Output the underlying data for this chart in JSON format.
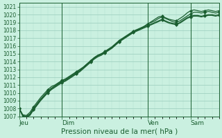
{
  "background_color": "#caf0e0",
  "grid_color": "#99ccbb",
  "line_color": "#1a5e30",
  "title": "Pression niveau de la mer( hPa )",
  "ylim": [
    1007,
    1021.5
  ],
  "yticks": [
    1007,
    1008,
    1009,
    1010,
    1011,
    1012,
    1013,
    1014,
    1015,
    1016,
    1017,
    1018,
    1019,
    1020,
    1021
  ],
  "xlim": [
    0,
    56
  ],
  "day_labels": [
    "Jeu",
    "Dim",
    "Ven",
    "Sam"
  ],
  "day_positions": [
    0,
    12,
    36,
    48
  ],
  "vline_positions": [
    0,
    12,
    36,
    48
  ],
  "n_points": 57,
  "series": [
    [
      1008.0,
      1007.2,
      1007.1,
      1007.5,
      1008.2,
      1008.8,
      1009.4,
      1009.9,
      1010.4,
      1010.8,
      1011.0,
      1011.3,
      1011.6,
      1011.8,
      1012.1,
      1012.4,
      1012.7,
      1013.0,
      1013.3,
      1013.7,
      1014.1,
      1014.5,
      1014.8,
      1015.0,
      1015.2,
      1015.5,
      1015.8,
      1016.2,
      1016.6,
      1016.9,
      1017.2,
      1017.5,
      1017.8,
      1018.0,
      1018.2,
      1018.5,
      1018.8,
      1019.1,
      1019.4,
      1019.7,
      1019.8,
      1019.6,
      1019.4,
      1019.3,
      1019.2,
      1019.5,
      1019.8,
      1020.2,
      1020.5,
      1020.6,
      1020.5,
      1020.4,
      1020.5,
      1020.6,
      1020.5,
      1020.4,
      1020.5
    ],
    [
      1008.0,
      1007.1,
      1007.0,
      1007.3,
      1008.0,
      1008.6,
      1009.2,
      1009.7,
      1010.2,
      1010.6,
      1010.9,
      1011.2,
      1011.5,
      1011.7,
      1012.0,
      1012.3,
      1012.6,
      1012.9,
      1013.3,
      1013.7,
      1014.1,
      1014.5,
      1014.8,
      1015.0,
      1015.3,
      1015.6,
      1015.9,
      1016.3,
      1016.7,
      1017.0,
      1017.3,
      1017.6,
      1017.9,
      1018.1,
      1018.3,
      1018.5,
      1018.8,
      1019.0,
      1019.2,
      1019.5,
      1019.7,
      1019.5,
      1019.3,
      1019.1,
      1019.0,
      1019.2,
      1019.5,
      1019.8,
      1020.1,
      1020.3,
      1020.3,
      1020.2,
      1020.3,
      1020.4,
      1020.3,
      1020.2,
      1020.3
    ],
    [
      1008.0,
      1007.0,
      1006.9,
      1007.2,
      1007.9,
      1008.5,
      1009.1,
      1009.6,
      1010.1,
      1010.5,
      1010.8,
      1011.1,
      1011.4,
      1011.6,
      1011.9,
      1012.2,
      1012.5,
      1012.8,
      1013.2,
      1013.6,
      1014.0,
      1014.4,
      1014.7,
      1014.9,
      1015.2,
      1015.5,
      1015.8,
      1016.2,
      1016.6,
      1016.9,
      1017.2,
      1017.5,
      1017.8,
      1018.0,
      1018.2,
      1018.4,
      1018.6,
      1018.8,
      1019.0,
      1019.2,
      1019.4,
      1019.2,
      1019.0,
      1018.9,
      1018.8,
      1019.0,
      1019.3,
      1019.6,
      1019.8,
      1019.9,
      1019.9,
      1019.8,
      1019.9,
      1020.0,
      1020.0,
      1019.9,
      1020.0
    ],
    [
      1008.0,
      1007.0,
      1006.9,
      1007.1,
      1007.8,
      1008.4,
      1009.0,
      1009.5,
      1010.0,
      1010.4,
      1010.7,
      1011.0,
      1011.3,
      1011.5,
      1011.8,
      1012.1,
      1012.4,
      1012.7,
      1013.1,
      1013.5,
      1013.9,
      1014.3,
      1014.6,
      1014.8,
      1015.1,
      1015.4,
      1015.7,
      1016.1,
      1016.5,
      1016.8,
      1017.1,
      1017.4,
      1017.7,
      1017.9,
      1018.1,
      1018.3,
      1018.5,
      1018.7,
      1018.9,
      1019.1,
      1019.3,
      1019.1,
      1018.9,
      1018.8,
      1018.7,
      1018.9,
      1019.2,
      1019.5,
      1019.7,
      1019.8,
      1019.8,
      1019.7,
      1019.8,
      1019.9,
      1019.9,
      1019.8,
      1019.9
    ]
  ],
  "marker_interval": 4,
  "marker_size": 2.0,
  "linewidth": 0.9,
  "ytick_fontsize": 5.5,
  "xtick_fontsize": 6.5,
  "xlabel_fontsize": 7.5
}
